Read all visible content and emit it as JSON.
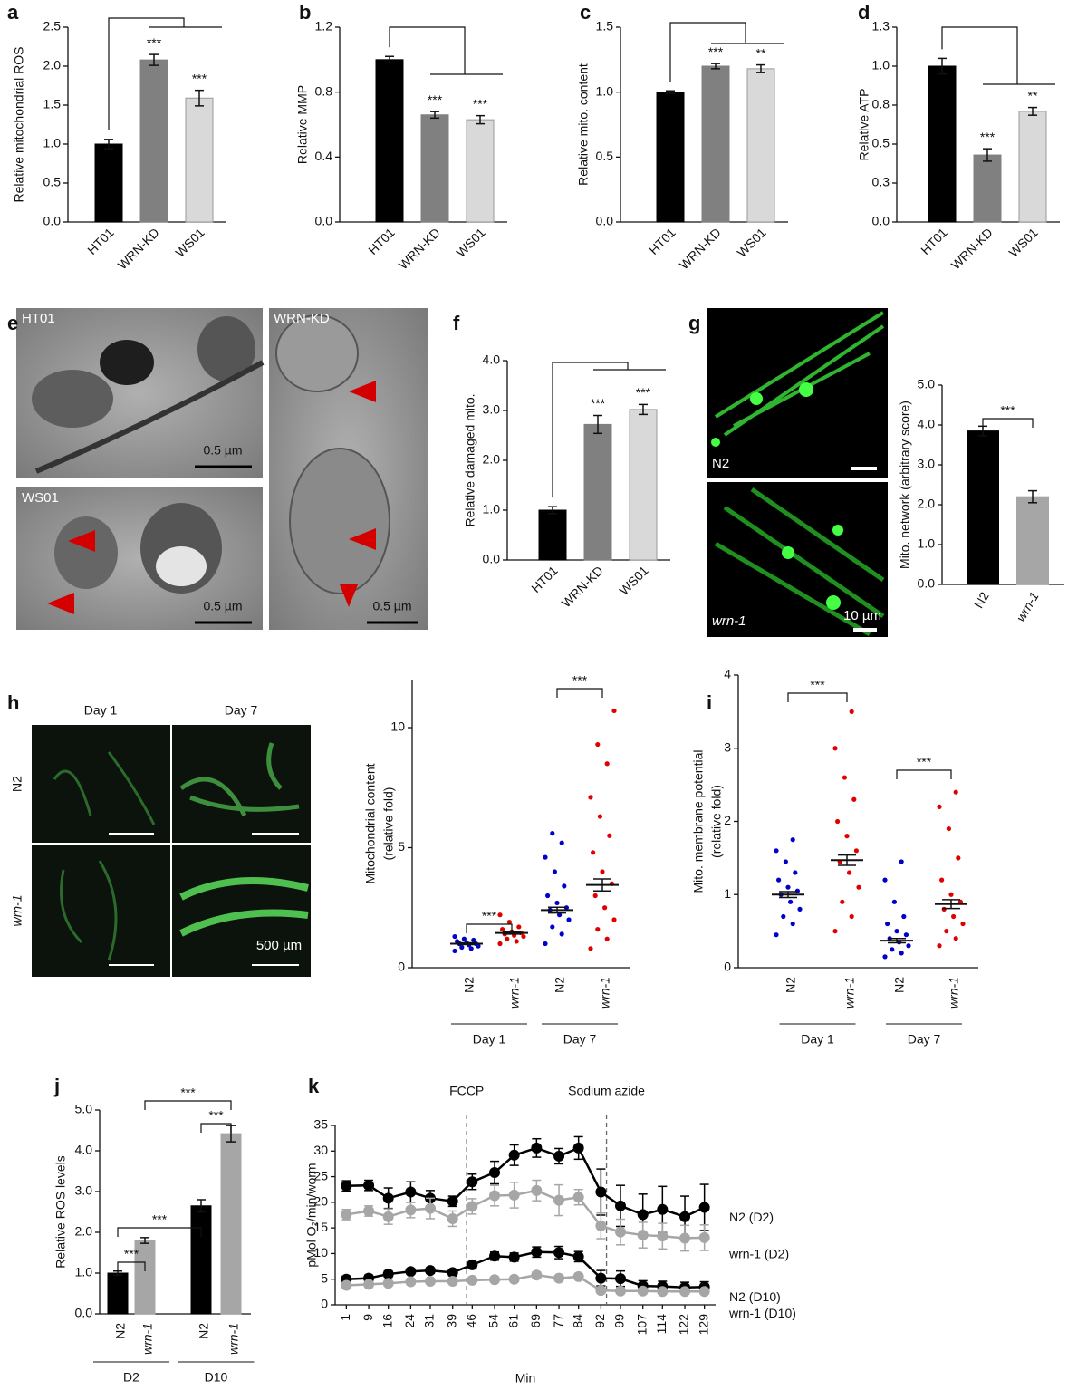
{
  "chart_data": [
    {
      "type": "bar",
      "panel": "a",
      "ylabel": "Relative mitochondrial ROS",
      "categories": [
        "HT01",
        "WRN-KD",
        "WS01"
      ],
      "values": [
        1.0,
        2.08,
        1.59
      ],
      "errors": [
        0.06,
        0.07,
        0.1
      ],
      "significance": [
        null,
        "***",
        "***"
      ],
      "colors": [
        "#000000",
        "#808080",
        "#d9d9d9"
      ],
      "ylim": [
        0,
        2.5
      ],
      "yticks": [
        {
          "value": 0,
          "label": "0.0"
        },
        0.5,
        {
          "value": 1,
          "label": "1.0"
        },
        1.5,
        {
          "value": 2,
          "label": "2.0"
        },
        2.5
      ]
    },
    {
      "type": "bar",
      "panel": "b",
      "ylabel": "Relative MMP",
      "categories": [
        "HT01",
        "WRN-KD",
        "WS01"
      ],
      "values": [
        1.0,
        0.66,
        0.63
      ],
      "errors": [
        0.02,
        0.02,
        0.025
      ],
      "significance": [
        null,
        "***",
        "***"
      ],
      "colors": [
        "#000000",
        "#808080",
        "#d9d9d9"
      ],
      "ylim": [
        0,
        1.2
      ],
      "yticks": [
        {
          "value": 0,
          "label": "0.0"
        },
        0.4,
        0.8,
        1.2
      ]
    },
    {
      "type": "bar",
      "panel": "c",
      "ylabel": "Relative mito. content",
      "categories": [
        "HT01",
        "WRN-KD",
        "WS01"
      ],
      "values": [
        1.0,
        1.2,
        1.18
      ],
      "errors": [
        0.01,
        0.02,
        0.03
      ],
      "significance": [
        null,
        "***",
        "**"
      ],
      "colors": [
        "#000000",
        "#808080",
        "#d9d9d9"
      ],
      "ylim": [
        0,
        1.5
      ],
      "yticks": [
        {
          "value": 0,
          "label": "0.0"
        },
        0.5,
        {
          "value": 1,
          "label": "1.0"
        },
        1.5
      ]
    },
    {
      "type": "bar",
      "panel": "d",
      "ylabel": "Relative ATP",
      "categories": [
        "HT01",
        "WRN-KD",
        "WS01"
      ],
      "values": [
        1.0,
        0.43,
        0.71
      ],
      "errors": [
        0.05,
        0.04,
        0.025
      ],
      "significance": [
        null,
        "***",
        "**"
      ],
      "colors": [
        "#000000",
        "#808080",
        "#d9d9d9"
      ],
      "ylim": [
        0,
        1.25
      ],
      "yticks": [
        {
          "value": 0,
          "label": "0.0"
        },
        {
          "value": 0.25,
          "label": "0.3"
        },
        0.5,
        {
          "value": 0.75,
          "label": "0.8"
        },
        {
          "value": 1,
          "label": "1.0"
        },
        {
          "value": 1.25,
          "label": "1.3"
        }
      ]
    },
    {
      "type": "bar",
      "panel": "f",
      "ylabel": "Relative damaged mito.",
      "categories": [
        "HT01",
        "WRN-KD",
        "WS01"
      ],
      "values": [
        1.0,
        2.72,
        3.02
      ],
      "errors": [
        0.07,
        0.18,
        0.1
      ],
      "significance": [
        null,
        "***",
        "***"
      ],
      "colors": [
        "#000000",
        "#808080",
        "#d9d9d9"
      ],
      "ylim": [
        0,
        4
      ],
      "yticks": [
        {
          "value": 0,
          "label": "0.0"
        },
        {
          "value": 1,
          "label": "1.0"
        },
        {
          "value": 2,
          "label": "2.0"
        },
        {
          "value": 3,
          "label": "3.0"
        },
        {
          "value": 4,
          "label": "4.0"
        }
      ]
    },
    {
      "type": "bar",
      "ylabel": "Mito. network (arbitrary score)",
      "categories": [
        "N2",
        "wrn-1"
      ],
      "values": [
        3.85,
        2.2
      ],
      "errors": [
        0.12,
        0.15
      ],
      "comparisons": [
        "***"
      ],
      "colors": [
        "#000000",
        "#a6a6a6"
      ],
      "ylim": [
        0,
        5
      ],
      "yticks": [
        {
          "value": 0,
          "label": "0.0"
        },
        {
          "value": 1,
          "label": "1.0"
        },
        {
          "value": 2,
          "label": "2.0"
        },
        {
          "value": 3,
          "label": "3.0"
        },
        {
          "value": 4,
          "label": "4.0"
        },
        {
          "value": 5,
          "label": "5.0"
        }
      ]
    },
    {
      "type": "strip",
      "ylabel": [
        "Mitochondrial content",
        "(relative fold)"
      ],
      "categories": [
        "N2",
        "wrn-1",
        "N2",
        "wrn-1"
      ],
      "groups": [
        "Day 1",
        "Day 7"
      ],
      "colors": [
        "#0000cc",
        "#e00000",
        "#0000cc",
        "#e00000"
      ],
      "values": [
        1.0,
        1.45,
        2.4,
        3.45
      ],
      "errors": [
        0.04,
        0.05,
        0.12,
        0.25
      ],
      "points": [
        [
          0.7,
          0.8,
          0.85,
          0.9,
          0.95,
          1.0,
          1.0,
          1.05,
          1.1,
          1.15,
          1.2,
          1.3
        ],
        [
          1.0,
          1.1,
          1.2,
          1.3,
          1.35,
          1.4,
          1.45,
          1.5,
          1.6,
          1.7,
          1.9,
          2.2
        ],
        [
          1.0,
          1.4,
          1.7,
          2.0,
          2.2,
          2.4,
          2.5,
          2.7,
          3.0,
          3.4,
          4.0,
          4.6,
          5.2,
          5.6
        ],
        [
          0.8,
          1.2,
          1.6,
          2.0,
          2.5,
          3.0,
          3.5,
          4.0,
          4.8,
          5.5,
          6.3,
          7.1,
          8.5,
          9.3,
          10.7
        ]
      ],
      "comparisons": [
        "***",
        "***"
      ],
      "ylim": [
        0,
        12
      ],
      "yticks": [
        0,
        5,
        10
      ]
    },
    {
      "type": "strip",
      "panel": "i",
      "ylabel": [
        "Mito. membrane potential",
        "(relative fold)"
      ],
      "categories": [
        "N2",
        "wrn-1",
        "N2",
        "wrn-1"
      ],
      "groups": [
        "Day 1",
        "Day 7"
      ],
      "colors": [
        "#0000cc",
        "#e00000",
        "#0000cc",
        "#e00000"
      ],
      "values": [
        1.0,
        1.47,
        0.37,
        0.87
      ],
      "errors": [
        0.04,
        0.07,
        0.03,
        0.06
      ],
      "points": [
        [
          0.45,
          0.6,
          0.7,
          0.8,
          0.9,
          1.0,
          1.05,
          1.1,
          1.2,
          1.3,
          1.45,
          1.6,
          1.75
        ],
        [
          0.5,
          0.7,
          0.9,
          1.1,
          1.3,
          1.45,
          1.6,
          1.8,
          2.0,
          2.3,
          2.6,
          3.0,
          3.5
        ],
        [
          0.15,
          0.2,
          0.25,
          0.3,
          0.35,
          0.4,
          0.45,
          0.5,
          0.6,
          0.7,
          0.9,
          1.2,
          1.45
        ],
        [
          0.3,
          0.4,
          0.5,
          0.6,
          0.7,
          0.8,
          0.9,
          1.0,
          1.2,
          1.5,
          1.9,
          2.2,
          2.4
        ]
      ],
      "comparisons": [
        "***",
        "***"
      ],
      "ylim": [
        0,
        4
      ],
      "yticks": [
        0,
        1,
        2,
        3,
        4
      ]
    },
    {
      "type": "bar",
      "panel": "j",
      "ylabel": "Relative ROS levels",
      "categories": [
        "N2",
        "wrn-1",
        "N2",
        "wrn-1"
      ],
      "groups": [
        "D2",
        "D10"
      ],
      "values": [
        1.0,
        1.8,
        2.65,
        4.42
      ],
      "errors": [
        0.05,
        0.07,
        0.15,
        0.2
      ],
      "comparisons": [
        "***",
        "***",
        "***",
        "***"
      ],
      "colors": [
        "#000000",
        "#a6a6a6",
        "#000000",
        "#a6a6a6"
      ],
      "ylim": [
        0,
        5
      ],
      "yticks": [
        {
          "value": 0,
          "label": "0.0"
        },
        {
          "value": 1,
          "label": "1.0"
        },
        {
          "value": 2,
          "label": "2.0"
        },
        {
          "value": 3,
          "label": "3.0"
        },
        {
          "value": 4,
          "label": "4.0"
        },
        {
          "value": 5,
          "label": "5.0"
        }
      ]
    },
    {
      "type": "line",
      "panel": "k",
      "xlabel": "Min",
      "ylabel": "pMol O₂/min/worm",
      "x": [
        1,
        9,
        16,
        24,
        31,
        39,
        46,
        54,
        61,
        69,
        77,
        84,
        92,
        99,
        107,
        114,
        122,
        129
      ],
      "xlim": [
        -3,
        133
      ],
      "xticks": [
        1,
        9,
        16,
        24,
        31,
        39,
        46,
        54,
        61,
        69,
        77,
        84,
        92,
        99,
        107,
        114,
        122,
        129
      ],
      "ylim": [
        0,
        35
      ],
      "yticks": [
        0,
        5,
        10,
        15,
        20,
        25,
        30,
        35
      ],
      "markers": [
        {
          "label": "FCCP",
          "x": 44
        },
        {
          "label": "Sodium azide",
          "x": 94
        }
      ],
      "series": [
        {
          "name": "N2 (D2)",
          "color": "#000000",
          "values": [
            23.2,
            23.3,
            20.8,
            22,
            20.8,
            20.2,
            24,
            25.8,
            29.2,
            30.6,
            29,
            30.6,
            22,
            19.3,
            17.6,
            18.6,
            17.2,
            19
          ],
          "errors": [
            1,
            1,
            2,
            2,
            1.5,
            1,
            1.5,
            2.2,
            2,
            1.8,
            1.5,
            2.2,
            4.5,
            4,
            4,
            4.5,
            4,
            4.5
          ]
        },
        {
          "name": "wrn-1 (D2)",
          "color": "#a6a6a6",
          "values": [
            17.6,
            18.3,
            17.2,
            18.5,
            18.8,
            16.8,
            19.2,
            21.3,
            21.4,
            22.3,
            20.4,
            21,
            15.4,
            14.2,
            13.6,
            13.4,
            13.0,
            13.1
          ],
          "errors": [
            1,
            1,
            1.5,
            1.5,
            2,
            1.5,
            1.5,
            2,
            2.5,
            2,
            3,
            1.5,
            2.5,
            2.5,
            2.5,
            2.5,
            2.5,
            2.5
          ]
        },
        {
          "name": "N2 (D10)",
          "color": "#000000",
          "values": [
            5,
            5.2,
            6.0,
            6.5,
            6.7,
            6.3,
            7.8,
            9.5,
            9.3,
            10.3,
            10.2,
            9.4,
            5.2,
            5.1,
            3.7,
            3.6,
            3.4,
            3.5
          ],
          "errors": [
            0.6,
            0.6,
            0.6,
            0.5,
            0.5,
            0.6,
            0.6,
            0.8,
            0.8,
            1,
            1.2,
            1,
            1.5,
            1.5,
            1,
            1,
            1,
            1
          ]
        },
        {
          "name": "wrn-1 (D10)",
          "color": "#a6a6a6",
          "values": [
            3.8,
            4,
            4.2,
            4.5,
            4.6,
            4.6,
            4.8,
            4.9,
            5,
            5.8,
            5.2,
            5.5,
            2.8,
            2.7,
            2.7,
            2.6,
            2.6,
            2.6
          ],
          "errors": [
            0.4,
            0.4,
            0.4,
            0.4,
            0.4,
            0.4,
            0.4,
            0.4,
            0.4,
            0.6,
            0.5,
            0.5,
            0.5,
            0.5,
            0.5,
            0.5,
            0.5,
            0.5
          ]
        }
      ]
    }
  ],
  "image_panels": {
    "e": {
      "letter": "e",
      "labels": [
        "HT01",
        "WS01",
        "WRN-KD"
      ],
      "scale_bars": [
        "0.5 µm",
        "0.5 µm",
        "0.5 µm"
      ]
    },
    "g": {
      "letter": "g",
      "labels": [
        "N2",
        "wrn-1"
      ],
      "scale_bar": "10 µm"
    },
    "h": {
      "letter": "h",
      "columns": [
        "Day 1",
        "Day 7"
      ],
      "rows": [
        "N2",
        "wrn-1"
      ],
      "scale_bar": "500 µm"
    }
  }
}
